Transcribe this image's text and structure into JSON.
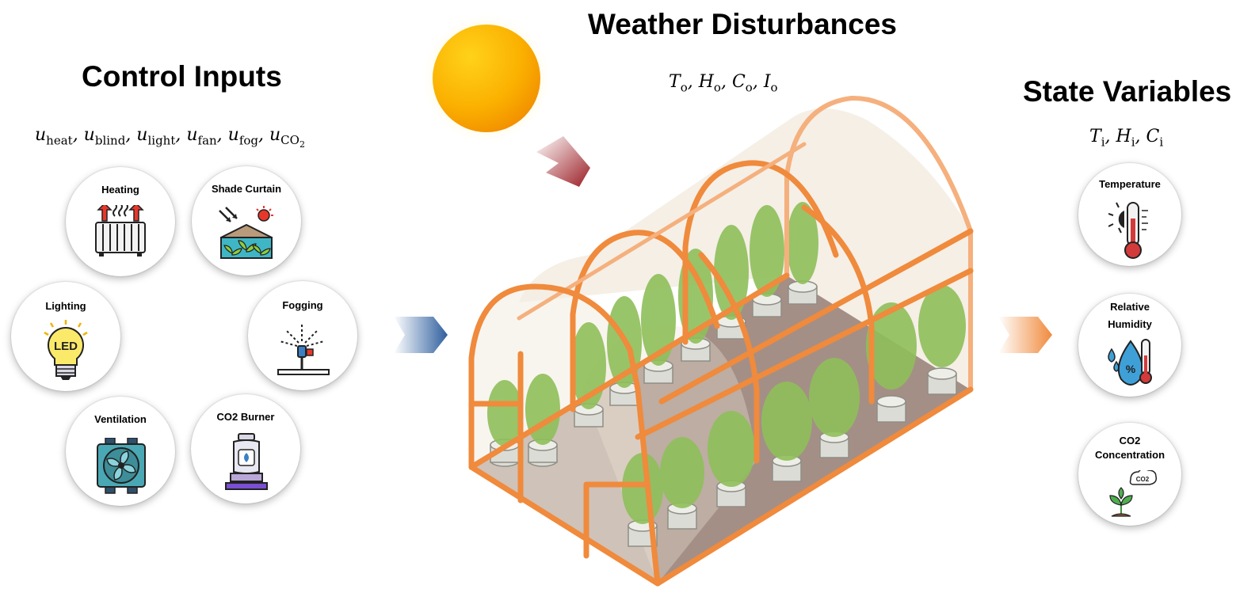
{
  "headings": {
    "control_inputs": "Control Inputs",
    "weather_disturbances": "Weather Disturbances",
    "state_variables": "State Variables"
  },
  "control_symbols": [
    "heat",
    "blind",
    "light",
    "fan",
    "fog",
    "CO"
  ],
  "weather_symbols": [
    "T",
    "H",
    "C",
    "I"
  ],
  "state_symbols": [
    "T",
    "H",
    "C"
  ],
  "controls": {
    "heating": "Heating",
    "shade_curtain": "Shade Curtain",
    "lighting": "Lighting",
    "led_text": "LED",
    "fogging": "Fogging",
    "ventilation": "Ventilation",
    "co2_burner": "CO2 Burner"
  },
  "states": {
    "temperature": "Temperature",
    "relative_humidity_line1": "Relative",
    "relative_humidity_line2": "Humidity",
    "co2_line1": "CO2",
    "co2_line2": "Concentration",
    "co2_cloud": "CO2"
  },
  "colors": {
    "frame_orange": "#f08a3c",
    "arrow_blue": "#2f5f9e",
    "arrow_orange": "#f08a3c",
    "arrow_red": "#9a1d24",
    "sun": "#f7a400",
    "floor": "#a48f86"
  }
}
